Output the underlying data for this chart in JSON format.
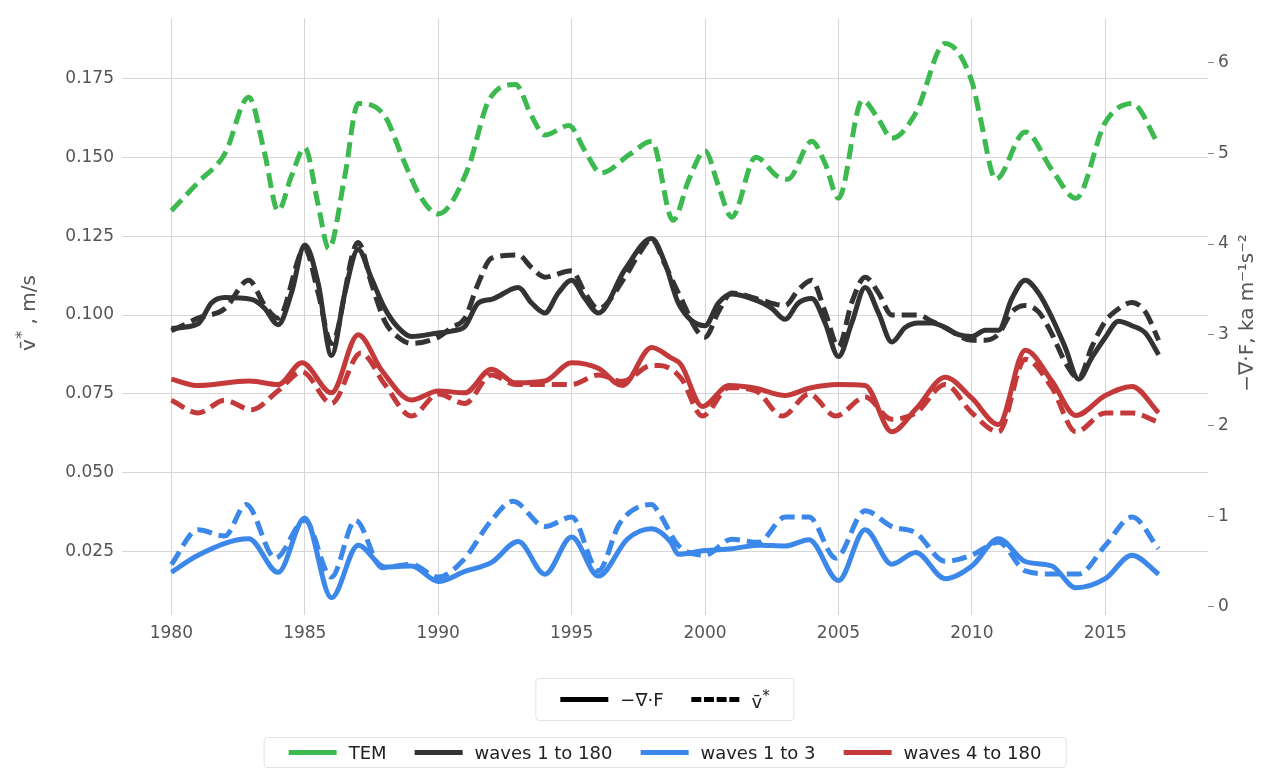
{
  "chart_data": {
    "type": "line",
    "ylabel": "v̄$^{*}$ , m/s",
    "y2label": "−∇·F, ka m⁻¹s⁻²",
    "annotations": [
      "−∇·F",
      "v̄$^{*}$"
    ],
    "xlim": [
      1978.15,
      2018.85
    ],
    "xticks": [
      1980,
      1985,
      1990,
      1995,
      2000,
      2005,
      2010,
      2015
    ],
    "ylim": [
      0.005,
      0.194
    ],
    "yticks": [
      {
        "value": 0.025,
        "label": "0.025"
      },
      {
        "value": 0.05,
        "label": "0.050"
      },
      {
        "value": 0.075,
        "label": "0.075"
      },
      {
        "value": 0.1,
        "label": "0.100"
      },
      {
        "value": 0.125,
        "label": "0.125"
      },
      {
        "value": 0.15,
        "label": "0.150"
      },
      {
        "value": 0.175,
        "label": "0.175"
      }
    ],
    "y2lim": [
      -0.09,
      6.49
    ],
    "y2ticks": [
      0,
      1,
      2,
      3,
      4,
      5,
      6
    ],
    "grid": true,
    "legend": "bottom",
    "series": [
      {
        "name": "TEM",
        "color": "#3cb94f",
        "axis": "y",
        "line_style": "dashed",
        "x": [
          1980,
          1981,
          1982,
          1982.9,
          1983.5,
          1984,
          1984.5,
          1985,
          1985.5,
          1985.9,
          1986.5,
          1987,
          1988,
          1988.7,
          1989.3,
          1990,
          1991.1,
          1991.9,
          1992.9,
          1993.5,
          1994,
          1994.9,
          1995.5,
          1996.1,
          1997.2,
          1998,
          1998.8,
          1999.4,
          2000,
          2000.5,
          2001,
          2001.9,
          2002.7,
          2003.1,
          2004,
          2004.5,
          2005,
          2005.9,
          2006.5,
          2007,
          2007.9,
          2009,
          2010,
          2010.3,
          2010.9,
          2012,
          2013,
          2013.9,
          2015,
          2016,
          2017
        ],
        "values": [
          0.133,
          0.142,
          0.151,
          0.169,
          0.151,
          0.133,
          0.144,
          0.153,
          0.135,
          0.121,
          0.144,
          0.167,
          0.163,
          0.149,
          0.138,
          0.132,
          0.146,
          0.168,
          0.173,
          0.163,
          0.157,
          0.16,
          0.152,
          0.145,
          0.151,
          0.155,
          0.13,
          0.143,
          0.152,
          0.141,
          0.131,
          0.15,
          0.144,
          0.143,
          0.155,
          0.148,
          0.137,
          0.168,
          0.162,
          0.156,
          0.164,
          0.186,
          0.174,
          0.163,
          0.143,
          0.158,
          0.146,
          0.137,
          0.161,
          0.167,
          0.154
        ]
      },
      {
        "name": "waves 1 to 180",
        "color": "#333333",
        "axis": "y2",
        "line_style": "solid",
        "x": [
          1980,
          1981,
          1981.5,
          1982,
          1983,
          1983.5,
          1984,
          1984.5,
          1985,
          1985.5,
          1986,
          1986.5,
          1987,
          1987.5,
          1988,
          1988.5,
          1989,
          1990,
          1990.5,
          1991,
          1991.5,
          1992,
          1993,
          1993.5,
          1994,
          1994.5,
          1995,
          1995.5,
          1996,
          1997,
          1998,
          1998.5,
          1999,
          2000,
          2000.5,
          2001,
          2002,
          2002.5,
          2003,
          2003.5,
          2004,
          2004.5,
          2005,
          2005.5,
          2006,
          2006.5,
          2007,
          2007.5,
          2008,
          2008.5,
          2009,
          2009.5,
          2010,
          2010.5,
          2011,
          2011.5,
          2012,
          2012.5,
          2013,
          2013.5,
          2014,
          2014.5,
          2015,
          2015.5,
          2016,
          2016.5,
          2017
        ],
        "values": [
          3.07,
          3.12,
          3.35,
          3.41,
          3.39,
          3.29,
          3.11,
          3.46,
          3.99,
          3.57,
          2.77,
          3.46,
          3.94,
          3.62,
          3.29,
          3.08,
          2.98,
          3.02,
          3.04,
          3.09,
          3.35,
          3.39,
          3.52,
          3.35,
          3.24,
          3.46,
          3.6,
          3.4,
          3.24,
          3.72,
          4.06,
          3.79,
          3.35,
          3.1,
          3.35,
          3.45,
          3.37,
          3.29,
          3.17,
          3.35,
          3.4,
          3.13,
          2.76,
          3.13,
          3.52,
          3.24,
          2.92,
          3.08,
          3.13,
          3.13,
          3.08,
          3.0,
          2.98,
          3.05,
          3.05,
          3.4,
          3.6,
          3.46,
          3.19,
          2.86,
          2.51,
          2.75,
          2.97,
          3.15,
          3.1,
          3.02,
          2.78
        ]
      },
      {
        "color": "#333333",
        "axis": "y",
        "line_style": "dashed",
        "x": [
          1980,
          1980.5,
          1981,
          1982,
          1982.9,
          1983.5,
          1984,
          1985,
          1985.5,
          1986,
          1987,
          1987.5,
          1988,
          1988.5,
          1989,
          1990,
          1990.5,
          1991,
          1991.5,
          1992,
          1993,
          1993.5,
          1994,
          1995,
          1995.5,
          1996,
          1997,
          1997.5,
          1998,
          1998.5,
          1999,
          2000,
          2000.5,
          2001,
          2002,
          2003,
          2003.5,
          2004,
          2004.5,
          2005,
          2005.5,
          2006,
          2006.5,
          2007,
          2008,
          2008.5,
          2009,
          2010,
          2010.5,
          2011,
          2011.5,
          2012,
          2012.5,
          2013,
          2013.5,
          2014,
          2014.5,
          2015,
          2015.5,
          2016,
          2016.5,
          2017
        ],
        "values": [
          0.095,
          0.097,
          0.099,
          0.102,
          0.111,
          0.103,
          0.099,
          0.121,
          0.107,
          0.091,
          0.123,
          0.11,
          0.098,
          0.093,
          0.091,
          0.093,
          0.096,
          0.099,
          0.11,
          0.118,
          0.119,
          0.115,
          0.112,
          0.114,
          0.107,
          0.102,
          0.112,
          0.119,
          0.124,
          0.116,
          0.107,
          0.093,
          0.101,
          0.107,
          0.105,
          0.103,
          0.108,
          0.111,
          0.101,
          0.09,
          0.104,
          0.112,
          0.107,
          0.1,
          0.1,
          0.098,
          0.096,
          0.092,
          0.092,
          0.094,
          0.101,
          0.103,
          0.101,
          0.094,
          0.085,
          0.08,
          0.09,
          0.098,
          0.102,
          0.104,
          0.101,
          0.092
        ]
      },
      {
        "name": "waves 1 to 3",
        "color": "#3b87ea",
        "axis": "y2",
        "line_style": "solid",
        "x": [
          1980,
          1981,
          1982.9,
          1984,
          1985,
          1986,
          1987,
          1988,
          1989,
          1990,
          1991,
          1992,
          1993,
          1994,
          1995,
          1996,
          1997.1,
          1998,
          1998.7,
          1999,
          2000,
          2001,
          2002,
          2003,
          2003.9,
          2005,
          2006,
          2007,
          2007.9,
          2009,
          2010,
          2011,
          2012,
          2013,
          2013.9,
          2015,
          2016,
          2017
        ],
        "values": [
          0.38,
          0.57,
          0.75,
          0.38,
          0.98,
          0.1,
          0.68,
          0.44,
          0.45,
          0.28,
          0.39,
          0.49,
          0.72,
          0.36,
          0.77,
          0.34,
          0.75,
          0.86,
          0.72,
          0.58,
          0.62,
          0.64,
          0.68,
          0.67,
          0.74,
          0.29,
          0.85,
          0.47,
          0.6,
          0.31,
          0.45,
          0.75,
          0.5,
          0.45,
          0.21,
          0.31,
          0.57,
          0.36
        ]
      },
      {
        "color": "#3b87ea",
        "axis": "y",
        "line_style": "dashed",
        "x": [
          1980,
          1981,
          1982,
          1982.8,
          1983.9,
          1985,
          1986,
          1986.9,
          1987.9,
          1989,
          1990,
          1990.9,
          1992,
          1992.8,
          1994,
          1995,
          1996,
          1996.8,
          1998,
          1998.3,
          1999,
          2000,
          2001,
          2002,
          2003,
          2003.9,
          2004.9,
          2006,
          2007,
          2007.9,
          2009,
          2010,
          2011,
          2012,
          2013,
          2014,
          2015,
          2016,
          2017
        ],
        "values": [
          0.021,
          0.032,
          0.03,
          0.04,
          0.023,
          0.035,
          0.017,
          0.035,
          0.02,
          0.021,
          0.017,
          0.022,
          0.035,
          0.041,
          0.033,
          0.036,
          0.019,
          0.034,
          0.04,
          0.037,
          0.027,
          0.024,
          0.029,
          0.028,
          0.036,
          0.036,
          0.023,
          0.038,
          0.033,
          0.031,
          0.022,
          0.024,
          0.028,
          0.019,
          0.018,
          0.018,
          0.027,
          0.036,
          0.026
        ]
      },
      {
        "name": "waves 4 to 180",
        "color": "#c43a3a",
        "axis": "y2",
        "line_style": "solid",
        "x": [
          1980,
          1981,
          1982.9,
          1984,
          1984.9,
          1986,
          1987,
          1987.9,
          1989,
          1990,
          1991,
          1992,
          1992.9,
          1994,
          1995,
          1996,
          1996.9,
          1998,
          1998.7,
          1999.1,
          1999.9,
          2000.9,
          2001.9,
          2003,
          2003.9,
          2005,
          2006,
          2007,
          2007.9,
          2009,
          2010,
          2011,
          2012,
          2013,
          2013.9,
          2015,
          2016,
          2017
        ],
        "values": [
          2.51,
          2.44,
          2.49,
          2.45,
          2.69,
          2.36,
          3.0,
          2.6,
          2.28,
          2.38,
          2.36,
          2.62,
          2.47,
          2.49,
          2.69,
          2.63,
          2.44,
          2.86,
          2.75,
          2.67,
          2.21,
          2.44,
          2.41,
          2.33,
          2.41,
          2.45,
          2.44,
          1.93,
          2.18,
          2.53,
          2.3,
          2.01,
          2.83,
          2.49,
          2.11,
          2.33,
          2.43,
          2.14
        ]
      },
      {
        "color": "#c43a3a",
        "axis": "y",
        "line_style": "dashed",
        "x": [
          1980,
          1981,
          1982,
          1983,
          1984,
          1984.9,
          1986,
          1987.1,
          1988,
          1989,
          1990,
          1991,
          1992,
          1992.9,
          1994,
          1995,
          1996,
          1996.9,
          1998,
          1998.3,
          1999.1,
          1999.9,
          2000.9,
          2001.9,
          2002.9,
          2003.9,
          2004.9,
          2006,
          2007,
          2007.9,
          2009,
          2010,
          2011,
          2012,
          2013,
          2013.9,
          2015,
          2016,
          2017
        ],
        "values": [
          0.073,
          0.069,
          0.073,
          0.07,
          0.076,
          0.082,
          0.072,
          0.088,
          0.078,
          0.068,
          0.075,
          0.072,
          0.081,
          0.078,
          0.078,
          0.078,
          0.081,
          0.079,
          0.084,
          0.084,
          0.08,
          0.068,
          0.077,
          0.076,
          0.068,
          0.075,
          0.068,
          0.074,
          0.067,
          0.069,
          0.078,
          0.069,
          0.063,
          0.086,
          0.077,
          0.063,
          0.069,
          0.069,
          0.066
        ]
      }
    ]
  }
}
